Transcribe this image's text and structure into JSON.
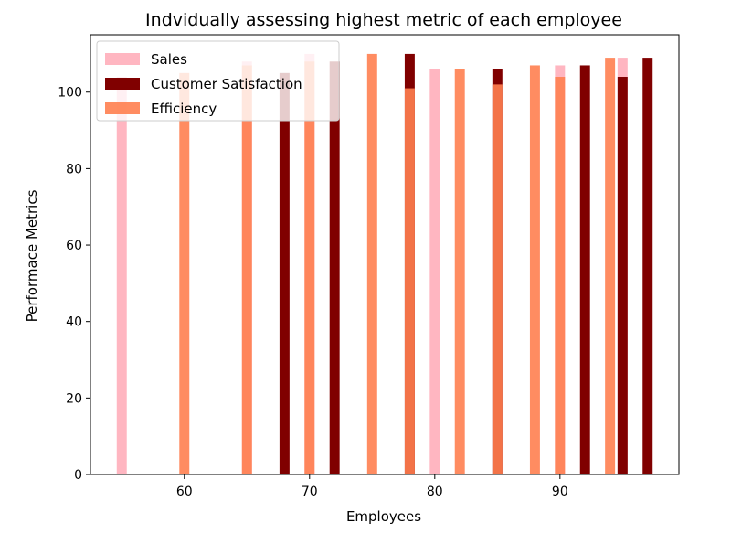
{
  "chart_data": {
    "type": "bar",
    "title": "Indvidually assessing highest metric of each employee",
    "xlabel": "Employees",
    "ylabel": "Performace Metrics",
    "xlim": [
      52.5,
      99.5
    ],
    "ylim": [
      0,
      115
    ],
    "xticks": [
      60,
      70,
      80,
      90
    ],
    "yticks": [
      0,
      20,
      40,
      60,
      80,
      100
    ],
    "grid": false,
    "legend_position": "upper-left",
    "bar_width": 0.8,
    "series": [
      {
        "name": "Sales",
        "color": "#ffb6c1",
        "alpha": 1,
        "points": [
          {
            "x": 55,
            "y": 104
          },
          {
            "x": 65,
            "y": 108
          },
          {
            "x": 70,
            "y": 110
          },
          {
            "x": 80,
            "y": 106
          },
          {
            "x": 90,
            "y": 107
          },
          {
            "x": 95,
            "y": 109
          }
        ]
      },
      {
        "name": "Customer Satisfaction",
        "color": "#800000",
        "alpha": 1,
        "points": [
          {
            "x": 68,
            "y": 105
          },
          {
            "x": 72,
            "y": 108
          },
          {
            "x": 78,
            "y": 110
          },
          {
            "x": 85,
            "y": 106
          },
          {
            "x": 92,
            "y": 107
          },
          {
            "x": 95,
            "y": 104
          },
          {
            "x": 97,
            "y": 109
          }
        ]
      },
      {
        "name": "Efficiency",
        "color": "#ff7f50",
        "alpha": 0.9,
        "points": [
          {
            "x": 60,
            "y": 105
          },
          {
            "x": 65,
            "y": 107
          },
          {
            "x": 70,
            "y": 108
          },
          {
            "x": 75,
            "y": 110
          },
          {
            "x": 78,
            "y": 101
          },
          {
            "x": 82,
            "y": 106
          },
          {
            "x": 85,
            "y": 102
          },
          {
            "x": 88,
            "y": 107
          },
          {
            "x": 90,
            "y": 104
          },
          {
            "x": 94,
            "y": 109
          }
        ]
      }
    ]
  }
}
